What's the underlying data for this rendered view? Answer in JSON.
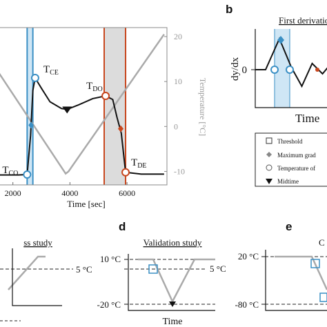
{
  "chart_data": [
    {
      "type": "line",
      "xlabel": "Time [sec]",
      "ylabel_right": "Temperature [°C]",
      "xticks": [
        2000,
        4000,
        6000
      ],
      "xlim": [
        1500,
        7400
      ],
      "y2ticks": [
        20,
        10,
        0,
        -10
      ],
      "y2lim": [
        -13,
        22
      ],
      "series": [
        {
          "role": "temperature",
          "color": "#aaaaaa",
          "points": [
            [
              1500,
              12
            ],
            [
              3850,
              -10.5
            ],
            [
              3950,
              -10
            ],
            [
              7300,
              20.5
            ]
          ]
        },
        {
          "role": "signal",
          "color": "#111111",
          "points": [
            [
              1500,
              -10.8
            ],
            [
              2200,
              -10.8
            ],
            [
              2500,
              -10.7
            ],
            [
              2620,
              -2
            ],
            [
              2700,
              8
            ],
            [
              2780,
              10.8
            ],
            [
              3000,
              8.5
            ],
            [
              3300,
              5.5
            ],
            [
              3700,
              4
            ],
            [
              3900,
              3.8
            ],
            [
              4300,
              4.8
            ],
            [
              4800,
              6.2
            ],
            [
              5250,
              6.8
            ],
            [
              5500,
              6
            ],
            [
              5650,
              2
            ],
            [
              5800,
              -1.5
            ],
            [
              5950,
              -10.2
            ],
            [
              6500,
              -10.6
            ],
            [
              7300,
              -10.6
            ]
          ]
        }
      ],
      "bands": [
        {
          "from": 2500,
          "to": 2700,
          "color": "#cfe6f5",
          "edge_color": "#3a8fc4"
        },
        {
          "from": 5200,
          "to": 5950,
          "color": "#dcdcdc",
          "edge_color": "#c8461d"
        }
      ],
      "markers": [
        {
          "label": "T",
          "sub": "CO",
          "x": 2500,
          "y": -10.7,
          "color": "#3a8fc4"
        },
        {
          "label": "T",
          "sub": "CE",
          "x": 2780,
          "y": 10.8,
          "color": "#3a8fc4"
        },
        {
          "label": "T",
          "sub": "DO",
          "x": 5250,
          "y": 6.8,
          "color": "#c8461d"
        },
        {
          "label": "T",
          "sub": "DE",
          "x": 5950,
          "y": -10.2,
          "color": "#c8461d"
        }
      ],
      "max_gradient": [
        {
          "x": 2640,
          "y": 0.3,
          "color": "#3a8fc4"
        },
        {
          "x": 5780,
          "y": -0.5,
          "color": "#c8461d"
        }
      ],
      "midtime": {
        "x": 3900,
        "y": 3.8
      }
    },
    {
      "panel": "b",
      "title": "First derivatio",
      "type": "line",
      "xlabel": "Time",
      "ylabel": "dy/dx",
      "ytick": "0",
      "band_color": "#cfe6f5",
      "edge_color": "#3a8fc4",
      "signal": [
        [
          0,
          0
        ],
        [
          0.6,
          0
        ],
        [
          1.4,
          1.5
        ],
        [
          2.1,
          0.1
        ],
        [
          2.7,
          -0.8
        ],
        [
          3.3,
          0.3
        ],
        [
          3.9,
          -0.2
        ],
        [
          4.3,
          0.2
        ]
      ]
    },
    {
      "panel": "c",
      "title": "ss study",
      "type": "line",
      "threshold": "5 °C"
    },
    {
      "panel": "d",
      "title": "Validation study",
      "type": "line",
      "xlabel": "Time",
      "y_top": "10 °C",
      "y_bottom": "-20 °C",
      "threshold": "5 °C"
    },
    {
      "panel": "e",
      "title": "C",
      "type": "line",
      "y_top": "20 °C",
      "y_bottom": "-80 °C"
    }
  ],
  "legend": {
    "items": [
      "Threshold",
      "Maximum grad",
      "Temperature of",
      "Midtime"
    ]
  },
  "panel_letters": {
    "b": "b",
    "d": "d",
    "e": "e"
  }
}
